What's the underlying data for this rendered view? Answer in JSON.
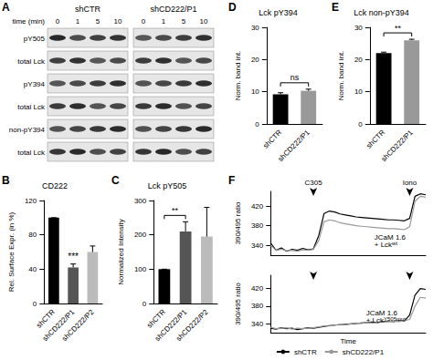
{
  "blot": {
    "panel": "A",
    "time_label": "time (min)",
    "groups": [
      {
        "name": "shCTR",
        "times": [
          0,
          1,
          5,
          10
        ]
      },
      {
        "name": "shCD222/P1",
        "times": [
          0,
          1,
          5,
          10
        ]
      }
    ],
    "rows": [
      "pY505",
      "total Lck",
      "pY394",
      "total Lck",
      "non-pY394",
      "total Lck"
    ]
  },
  "chart_data": [
    {
      "type": "bar",
      "panel": "B",
      "title": "CD222",
      "y_label": "Rel. Surface Expr. (in %)",
      "categories": [
        "shCTR",
        "shCD222/P1",
        "shCD222/P2"
      ],
      "values": [
        100,
        42,
        60
      ],
      "errors": [
        0,
        4,
        7
      ],
      "colors": [
        "#000000",
        "#555555",
        "#bbbbbb"
      ],
      "ylim": [
        0,
        120
      ],
      "yticks": [
        0,
        40,
        80,
        120
      ],
      "grid": false,
      "annotations": [
        {
          "text": "***",
          "categories": [
            "shCD222/P1"
          ]
        }
      ]
    },
    {
      "type": "bar",
      "panel": "C",
      "title": "Lck pY505",
      "y_label": "Normalized Intensity",
      "categories": [
        "shCTR",
        "shCD222/P1",
        "shCD222/P2"
      ],
      "values": [
        100,
        210,
        195
      ],
      "errors": [
        0,
        28,
        85
      ],
      "colors": [
        "#000000",
        "#555555",
        "#bbbbbb"
      ],
      "ylim": [
        0,
        300
      ],
      "yticks": [
        0,
        100,
        200,
        300
      ],
      "grid": false,
      "annotations": [
        {
          "text": "**",
          "categories": [
            "shCTR",
            "shCD222/P1"
          ]
        }
      ]
    },
    {
      "type": "bar",
      "panel": "D",
      "title": "Lck pY394",
      "y_label": "Norm. band int.",
      "categories": [
        "shCTR",
        "shCD222/P1"
      ],
      "values": [
        9.2,
        10.3
      ],
      "errors": [
        0.5,
        0.5
      ],
      "colors": [
        "#000000",
        "#999999"
      ],
      "ylim": [
        0,
        30
      ],
      "yticks": [
        0,
        10,
        20,
        30
      ],
      "grid": false,
      "annotations": [
        {
          "text": "ns",
          "categories": [
            "shCTR",
            "shCD222/P1"
          ]
        }
      ]
    },
    {
      "type": "bar",
      "panel": "E",
      "title": "Lck non-pY394",
      "y_label": "Norm. band int.",
      "categories": [
        "shCTR",
        "shCD222/P1"
      ],
      "values": [
        22,
        26
      ],
      "errors": [
        0.3,
        0.3
      ],
      "colors": [
        "#000000",
        "#999999"
      ],
      "ylim": [
        0,
        30
      ],
      "yticks": [
        0,
        10,
        20,
        30
      ],
      "grid": false,
      "annotations": [
        {
          "text": "**",
          "categories": [
            "shCTR",
            "shCD222/P1"
          ]
        }
      ]
    },
    {
      "type": "line",
      "panel": "F",
      "y_label": "390/495 ratio",
      "tick_labels": "y",
      "grid": false,
      "subtitle": {
        "lines": [
          "JCaM 1.6",
          "+ Lck"
        ],
        "superscript": "wt"
      },
      "x": [
        0,
        1,
        2,
        3,
        4,
        5,
        6,
        7,
        8,
        9,
        10,
        11,
        12,
        13,
        14,
        15,
        16,
        17,
        18,
        19,
        20,
        21,
        22,
        23,
        24,
        25,
        26,
        27,
        28,
        29
      ],
      "xlim": [
        0,
        29
      ],
      "ylim": [
        320,
        450
      ],
      "yticks": [
        340,
        380,
        420
      ],
      "annotations": [
        {
          "text": "C305",
          "x": 8
        },
        {
          "text": "Iono",
          "x": 26
        }
      ],
      "series": [
        {
          "name": "shCTR",
          "color": "#000000",
          "values": [
            345,
            330,
            335,
            328,
            332,
            330,
            334,
            331,
            333,
            360,
            405,
            410,
            408,
            404,
            402,
            400,
            398,
            397,
            396,
            395,
            394,
            393,
            392,
            392,
            391,
            390,
            395,
            440,
            445,
            443
          ]
        },
        {
          "name": "shCD222/P1",
          "color": "#999999",
          "values": [
            340,
            330,
            332,
            329,
            330,
            328,
            331,
            330,
            332,
            350,
            388,
            392,
            390,
            386,
            384,
            382,
            380,
            379,
            378,
            377,
            376,
            375,
            374,
            374,
            373,
            372,
            378,
            430,
            440,
            438
          ]
        }
      ]
    },
    {
      "type": "line",
      "y_label": "390/495 ratio",
      "x_label": "Time",
      "tick_labels": "y",
      "grid": false,
      "legend": "bottom",
      "subtitle": {
        "lines": [
          "JCaM 1.6",
          "+ Lck"
        ],
        "superscript": "Y505mut"
      },
      "x": [
        0,
        1,
        2,
        3,
        4,
        5,
        6,
        7,
        8,
        9,
        10,
        11,
        12,
        13,
        14,
        15,
        16,
        17,
        18,
        19,
        20,
        21,
        22,
        23,
        24,
        25,
        26,
        27,
        28,
        29
      ],
      "xlim": [
        0,
        29
      ],
      "ylim": [
        320,
        450
      ],
      "yticks": [
        340,
        380,
        420
      ],
      "annotations": [
        {
          "text": "",
          "x": 8
        },
        {
          "text": "",
          "x": 26
        }
      ],
      "series": [
        {
          "name": "shCTR",
          "color": "#000000",
          "values": [
            330,
            328,
            331,
            329,
            330,
            327,
            329,
            331,
            330,
            332,
            334,
            336,
            337,
            338,
            339,
            340,
            341,
            342,
            343,
            344,
            343,
            345,
            346,
            345,
            347,
            346,
            360,
            405,
            420,
            418
          ]
        },
        {
          "name": "shCD222/P1",
          "color": "#999999",
          "values": [
            332,
            329,
            330,
            331,
            328,
            330,
            329,
            330,
            331,
            333,
            335,
            335,
            337,
            339,
            338,
            340,
            342,
            341,
            343,
            342,
            344,
            344,
            345,
            346,
            345,
            347,
            350,
            380,
            400,
            398
          ]
        }
      ]
    }
  ]
}
